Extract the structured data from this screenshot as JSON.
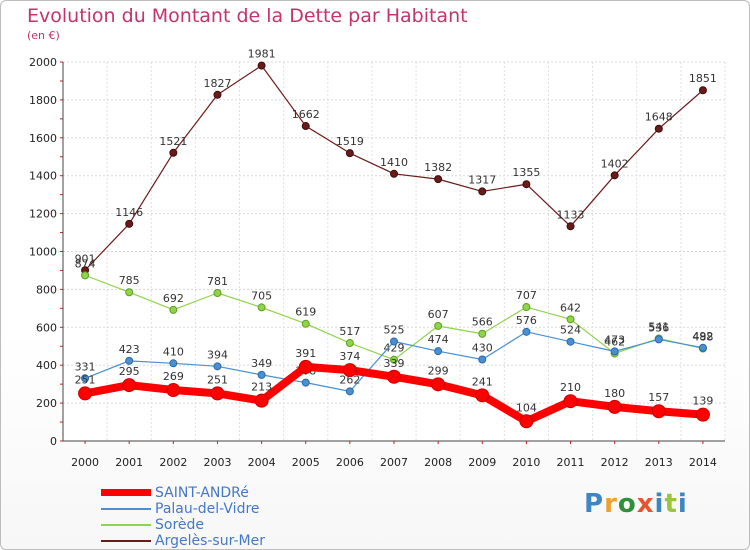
{
  "title": "Evolution du Montant de la Dette par Habitant",
  "subtitle": "(en €)",
  "brand": {
    "text": "Proxiti",
    "letter_colors": [
      "#3d86c6",
      "#f0a12a",
      "#2f8f3a",
      "#e4572e",
      "#3d86c6",
      "#9bc53d",
      "#3d86c6"
    ]
  },
  "chart_data": {
    "type": "line",
    "title": "Evolution du Montant de la Dette par Habitant",
    "ylabel": "(en €)",
    "xlabel": "",
    "ylim": [
      0,
      2000
    ],
    "yticks": [
      0,
      200,
      400,
      600,
      800,
      1000,
      1200,
      1400,
      1600,
      1800,
      2000
    ],
    "x": [
      "2000",
      "2001",
      "2002",
      "2003",
      "2004",
      "2005",
      "2006",
      "2007",
      "2008",
      "2009",
      "2010",
      "2011",
      "2012",
      "2013",
      "2014"
    ],
    "grid": true,
    "legend_position": "bottom-left",
    "series": [
      {
        "name": "SAINT-ANDRé",
        "color": "#ff0000",
        "values": [
          251,
          295,
          269,
          251,
          213,
          391,
          374,
          339,
          299,
          241,
          104,
          210,
          180,
          157,
          139
        ]
      },
      {
        "name": "Palau-del-Vidre",
        "color": "#4a8fd4",
        "values": [
          331,
          423,
          410,
          394,
          349,
          308,
          262,
          525,
          474,
          430,
          576,
          524,
          473,
          536,
          492
        ]
      },
      {
        "name": "Sorède",
        "color": "#8fd44a",
        "values": [
          874,
          785,
          692,
          781,
          705,
          619,
          517,
          429,
          607,
          566,
          707,
          642,
          462,
          541,
          488
        ]
      },
      {
        "name": "Argelès-sur-Mer",
        "color": "#6b1a1a",
        "values": [
          901,
          1146,
          1521,
          1827,
          1981,
          1662,
          1519,
          1410,
          1382,
          1317,
          1355,
          1133,
          1402,
          1648,
          1851
        ]
      }
    ]
  }
}
